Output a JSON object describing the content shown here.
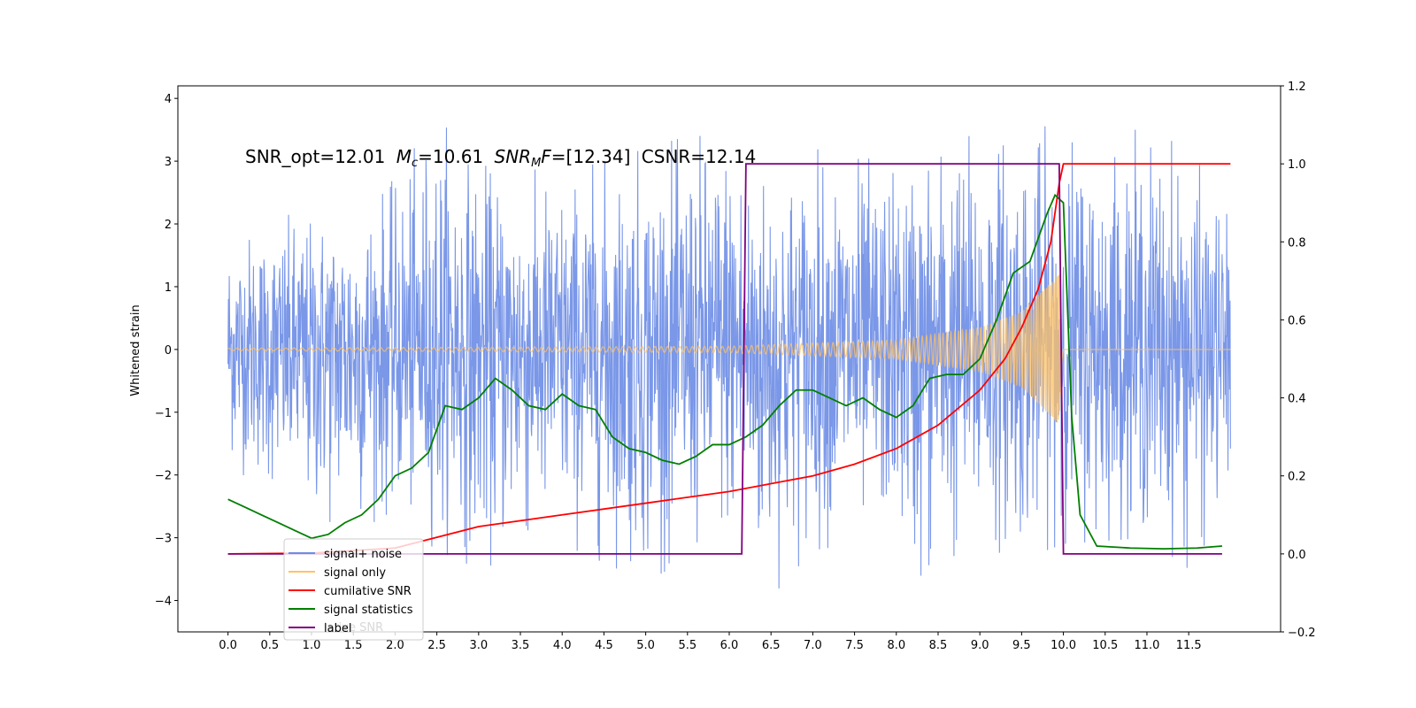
{
  "chart_data": {
    "type": "line",
    "title": "",
    "xlabel": "",
    "ylabel": "Whitened strain",
    "xlim": [
      -0.6,
      12.6
    ],
    "ylim": [
      -4.5,
      4.2
    ],
    "y2lim": [
      -0.2,
      1.2
    ],
    "xticks": [
      "0.0",
      "0.5",
      "1.0",
      "1.5",
      "2.0",
      "2.5",
      "3.0",
      "3.5",
      "4.0",
      "4.5",
      "5.0",
      "5.5",
      "6.0",
      "6.5",
      "7.0",
      "7.5",
      "8.0",
      "8.5",
      "9.0",
      "9.5",
      "10.0",
      "10.5",
      "11.0",
      "11.5"
    ],
    "yticks": [
      "−4",
      "−3",
      "−2",
      "−1",
      "0",
      "1",
      "2",
      "3",
      "4"
    ],
    "y2ticks": [
      "−0.2",
      "0.0",
      "0.2",
      "0.4",
      "0.6",
      "0.8",
      "1.0",
      "1.2"
    ],
    "annotation": {
      "snr_opt": "SNR_opt=12.01",
      "mc_symbol": "M",
      "mc_sub": "c",
      "mc_value": "=10.61",
      "snr_symbol": "SNR",
      "snr_sub": "M",
      "snr_f": "F",
      "snr_value": "=[12.34]",
      "csnr": "CSNR=12.14"
    },
    "legend": {
      "placement": "lower-left",
      "entries": [
        {
          "label": "signal+ noise",
          "color": "#6b8ce6"
        },
        {
          "label": "signal only",
          "color": "#ffc266"
        },
        {
          "label": "cumilative SNR",
          "color": "#ff0000"
        },
        {
          "label": "signal statistics",
          "color": "#007f00"
        },
        {
          "label": "label",
          "color": "#800080"
        }
      ],
      "hidden_text": "lative SNR"
    },
    "series": [
      {
        "name": "signal+ noise",
        "axis": "left",
        "color": "#6b8ce6",
        "envelope": {
          "x": [
            0,
            1,
            2,
            2.5,
            3,
            4,
            5,
            6,
            6.4,
            7,
            8,
            8.25,
            9,
            9.6,
            10,
            11,
            11.5,
            12
          ],
          "upper": [
            2.0,
            2.2,
            2.7,
            3.8,
            3.0,
            2.8,
            3.2,
            3.6,
            2.9,
            3.2,
            3.0,
            3.3,
            3.6,
            3.6,
            3.5,
            3.5,
            3.2,
            2.2
          ],
          "lower": [
            -1.8,
            -2.9,
            -2.7,
            -3.2,
            -3.5,
            -3.1,
            -3.7,
            -3.0,
            -4.1,
            -3.2,
            -3.0,
            -3.9,
            -3.2,
            -3.3,
            -3.1,
            -3.0,
            -3.5,
            -2.5
          ]
        }
      },
      {
        "name": "signal only",
        "axis": "left",
        "color": "#ffc266",
        "amplitude": {
          "x": [
            0,
            6,
            7,
            8,
            9,
            9.5,
            9.8,
            9.95,
            10.0,
            12
          ],
          "y": [
            0.02,
            0.05,
            0.1,
            0.15,
            0.35,
            0.6,
            1.0,
            1.2,
            0.0,
            0.0
          ]
        }
      },
      {
        "name": "cumilative SNR",
        "axis": "right",
        "color": "#ff0000",
        "x": [
          0,
          1,
          2,
          3,
          4,
          5,
          6,
          7,
          7.5,
          8,
          8.5,
          9,
          9.3,
          9.5,
          9.7,
          9.85,
          9.95,
          10.0,
          12
        ],
        "y": [
          0.0,
          0.002,
          0.015,
          0.07,
          0.1,
          0.13,
          0.16,
          0.2,
          0.23,
          0.27,
          0.33,
          0.42,
          0.5,
          0.58,
          0.68,
          0.8,
          0.95,
          1.0,
          1.0
        ]
      },
      {
        "name": "signal statistics",
        "axis": "right",
        "color": "#007f00",
        "x": [
          0,
          0.2,
          0.4,
          0.6,
          0.8,
          1.0,
          1.2,
          1.4,
          1.6,
          1.8,
          2.0,
          2.2,
          2.4,
          2.6,
          2.8,
          3.0,
          3.2,
          3.4,
          3.6,
          3.8,
          4.0,
          4.2,
          4.4,
          4.6,
          4.8,
          5.0,
          5.2,
          5.4,
          5.6,
          5.8,
          6.0,
          6.2,
          6.4,
          6.6,
          6.8,
          7.0,
          7.2,
          7.4,
          7.6,
          7.8,
          8.0,
          8.2,
          8.4,
          8.6,
          8.8,
          9.0,
          9.2,
          9.4,
          9.6,
          9.8,
          9.9,
          10.0,
          10.1,
          10.2,
          10.4,
          10.8,
          11.2,
          11.6,
          11.9
        ],
        "y": [
          0.14,
          0.12,
          0.1,
          0.08,
          0.06,
          0.04,
          0.05,
          0.08,
          0.1,
          0.14,
          0.2,
          0.22,
          0.26,
          0.38,
          0.37,
          0.4,
          0.45,
          0.42,
          0.38,
          0.37,
          0.41,
          0.38,
          0.37,
          0.3,
          0.27,
          0.26,
          0.24,
          0.23,
          0.25,
          0.28,
          0.28,
          0.3,
          0.33,
          0.38,
          0.42,
          0.42,
          0.4,
          0.38,
          0.4,
          0.37,
          0.35,
          0.38,
          0.45,
          0.46,
          0.46,
          0.5,
          0.6,
          0.72,
          0.75,
          0.87,
          0.92,
          0.9,
          0.35,
          0.1,
          0.02,
          0.015,
          0.013,
          0.015,
          0.02
        ]
      },
      {
        "name": "label",
        "axis": "right",
        "color": "#800080",
        "x": [
          0,
          6.15,
          6.2,
          9.95,
          10.0,
          11.9
        ],
        "y": [
          0,
          0,
          1,
          1,
          0,
          0
        ]
      }
    ]
  }
}
